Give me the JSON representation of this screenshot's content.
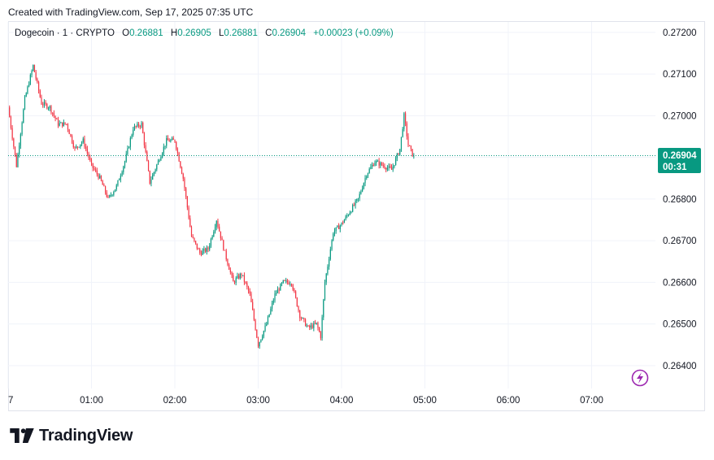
{
  "header": {
    "caption": "Created with TradingView.com, Sep 17, 2025 07:35 UTC"
  },
  "legend": {
    "symbol": "Dogecoin · 1 · CRYPTO",
    "o_label": "O",
    "o_value": "0.26881",
    "h_label": "H",
    "h_value": "0.26905",
    "l_label": "L",
    "l_value": "0.26881",
    "c_label": "C",
    "c_value": "0.26904",
    "change": "+0.00023 (+0.09%)"
  },
  "price_tag": {
    "price": "0.26904",
    "countdown": "00:31",
    "color": "#089981"
  },
  "logo": {
    "text": "TradingView"
  },
  "colors": {
    "up": "#089981",
    "down": "#f23645",
    "grid": "#f0f3fa",
    "axis_text": "#131722"
  },
  "chart_data": {
    "type": "candlestick",
    "title": "Dogecoin · 1 · CRYPTO",
    "ylim": [
      0.26345,
      0.27225
    ],
    "y_ticks": [
      "0.27200",
      "0.27100",
      "0.27000",
      "0.26900",
      "0.26800",
      "0.26700",
      "0.26600",
      "0.26500",
      "0.26400"
    ],
    "x_ticks": [
      {
        "label": "7",
        "time": "00:00"
      },
      {
        "label": "01:00",
        "time": "01:00"
      },
      {
        "label": "02:00",
        "time": "02:00"
      },
      {
        "label": "03:00",
        "time": "03:00"
      },
      {
        "label": "04:00",
        "time": "04:00"
      },
      {
        "label": "05:00",
        "time": "05:00"
      },
      {
        "label": "06:00",
        "time": "06:00"
      },
      {
        "label": "07:00",
        "time": "07:00"
      }
    ],
    "last_price": 0.26904,
    "close_path": [
      {
        "t": 0,
        "p": 0.2702
      },
      {
        "t": 6,
        "p": 0.2688
      },
      {
        "t": 12,
        "p": 0.2704
      },
      {
        "t": 18,
        "p": 0.2712
      },
      {
        "t": 24,
        "p": 0.2703
      },
      {
        "t": 30,
        "p": 0.2702
      },
      {
        "t": 36,
        "p": 0.2698
      },
      {
        "t": 42,
        "p": 0.2698
      },
      {
        "t": 48,
        "p": 0.2692
      },
      {
        "t": 54,
        "p": 0.2694
      },
      {
        "t": 60,
        "p": 0.2688
      },
      {
        "t": 66,
        "p": 0.2685
      },
      {
        "t": 72,
        "p": 0.268
      },
      {
        "t": 78,
        "p": 0.2683
      },
      {
        "t": 84,
        "p": 0.2689
      },
      {
        "t": 90,
        "p": 0.2697
      },
      {
        "t": 96,
        "p": 0.2698
      },
      {
        "t": 102,
        "p": 0.2684
      },
      {
        "t": 108,
        "p": 0.2689
      },
      {
        "t": 114,
        "p": 0.2694
      },
      {
        "t": 120,
        "p": 0.2694
      },
      {
        "t": 126,
        "p": 0.2685
      },
      {
        "t": 132,
        "p": 0.2671
      },
      {
        "t": 138,
        "p": 0.2667
      },
      {
        "t": 144,
        "p": 0.2668
      },
      {
        "t": 150,
        "p": 0.2675
      },
      {
        "t": 156,
        "p": 0.2667
      },
      {
        "t": 162,
        "p": 0.266
      },
      {
        "t": 168,
        "p": 0.2662
      },
      {
        "t": 174,
        "p": 0.2657
      },
      {
        "t": 180,
        "p": 0.2645
      },
      {
        "t": 186,
        "p": 0.265
      },
      {
        "t": 192,
        "p": 0.2657
      },
      {
        "t": 198,
        "p": 0.266
      },
      {
        "t": 204,
        "p": 0.266
      },
      {
        "t": 210,
        "p": 0.2652
      },
      {
        "t": 216,
        "p": 0.2649
      },
      {
        "t": 222,
        "p": 0.265
      },
      {
        "t": 225,
        "p": 0.2647
      },
      {
        "t": 228,
        "p": 0.266
      },
      {
        "t": 234,
        "p": 0.2672
      },
      {
        "t": 240,
        "p": 0.2674
      },
      {
        "t": 246,
        "p": 0.2677
      },
      {
        "t": 252,
        "p": 0.268
      },
      {
        "t": 258,
        "p": 0.2686
      },
      {
        "t": 264,
        "p": 0.2689
      },
      {
        "t": 270,
        "p": 0.2688
      },
      {
        "t": 276,
        "p": 0.2687
      },
      {
        "t": 282,
        "p": 0.2692
      },
      {
        "t": 285,
        "p": 0.27
      },
      {
        "t": 288,
        "p": 0.2693
      },
      {
        "t": 292,
        "p": 0.269
      }
    ]
  }
}
